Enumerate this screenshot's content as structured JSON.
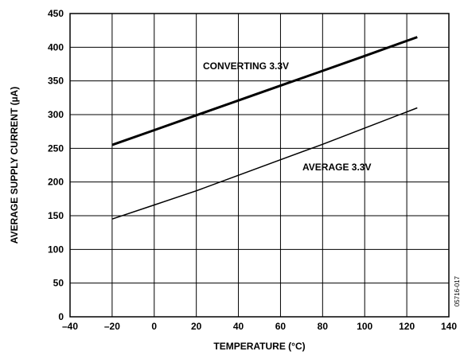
{
  "chart_data": {
    "type": "line",
    "xlabel": "TEMPERATURE (°C)",
    "ylabel": "AVERAGE SUPPLY CURRENT (µA)",
    "xlim": [
      -40,
      140
    ],
    "ylim": [
      0,
      450
    ],
    "x_ticks": [
      -40,
      -20,
      0,
      20,
      40,
      60,
      80,
      100,
      120,
      140
    ],
    "x_tick_labels": [
      "–40",
      "–20",
      "0",
      "20",
      "40",
      "60",
      "80",
      "100",
      "120",
      "140"
    ],
    "y_ticks": [
      0,
      50,
      100,
      150,
      200,
      250,
      300,
      350,
      400,
      450
    ],
    "y_tick_labels": [
      "0",
      "50",
      "100",
      "150",
      "200",
      "250",
      "300",
      "350",
      "400",
      "450"
    ],
    "grid": true,
    "series": [
      {
        "name": "CONVERTING 3.3V",
        "x": [
          -20,
          0,
          20,
          40,
          60,
          80,
          100,
          125
        ],
        "y": [
          255,
          277,
          299,
          321,
          343,
          365,
          387,
          415
        ]
      },
      {
        "name": "AVERAGE 3.3V",
        "x": [
          -20,
          0,
          20,
          40,
          60,
          80,
          100,
          125
        ],
        "y": [
          145,
          166,
          187,
          210,
          233,
          256,
          280,
          310
        ]
      }
    ]
  },
  "figure_id": "05716-017"
}
